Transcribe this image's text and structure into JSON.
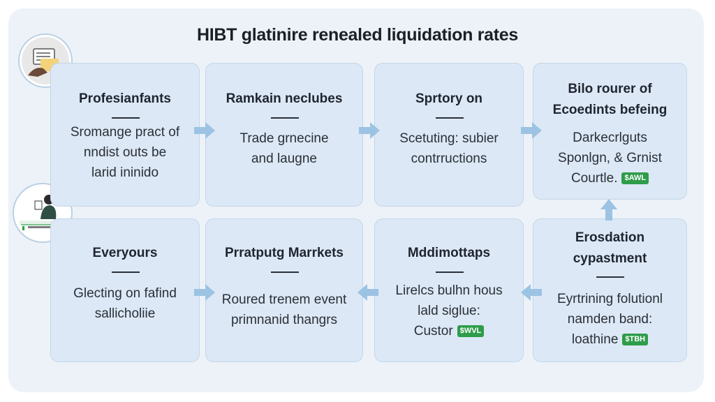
{
  "title": "HIBT glatinire renealed liquidation rates",
  "icons": {
    "avatar_top": "document-hand-icon",
    "avatar_mid": "person-with-chart-icon",
    "arrow": "right-arrow-icon",
    "money_badge": "cash-icon"
  },
  "colors": {
    "card_fill": "#dce8f5",
    "card_border": "#c3d6ea",
    "arrow": "#9cc3e3",
    "badge": "#2e9c4a"
  },
  "cards": [
    {
      "head": [
        "Profesianfants"
      ],
      "body": [
        "Sromange pract of",
        "nndist outs be",
        "larid ininido"
      ]
    },
    {
      "head": [
        "Ramkain neclubes"
      ],
      "body": [
        "Trade grnecine",
        "and laugne"
      ]
    },
    {
      "head": [
        "Sprtory on"
      ],
      "body": [
        "Scetuting: subier",
        "contrructions"
      ]
    },
    {
      "head": [
        "Bilo rourer of",
        "Ecoedints befeing"
      ],
      "body": [
        "Darkecrlguts",
        "Sponlgn, & Grnist",
        "Courtle."
      ],
      "badge": "$AWL"
    },
    {
      "head": [
        "Everyours"
      ],
      "body": [
        "Glecting on fafind",
        "sallicholiie"
      ]
    },
    {
      "head": [
        "Prratputg Marrkets"
      ],
      "body": [
        "Roured trenem event",
        "primnanid thangrs"
      ]
    },
    {
      "head": [
        "Mddimottaps"
      ],
      "body": [
        "Lirelcs bulhn hous",
        "lald siglue:",
        "Custor"
      ],
      "badge": "$WVL"
    },
    {
      "head": [
        "Erosdation",
        "cypastment"
      ],
      "body": [
        "Eyrtrining folutionl",
        "namden band:",
        "loathine"
      ],
      "badge": "$TBH"
    }
  ]
}
